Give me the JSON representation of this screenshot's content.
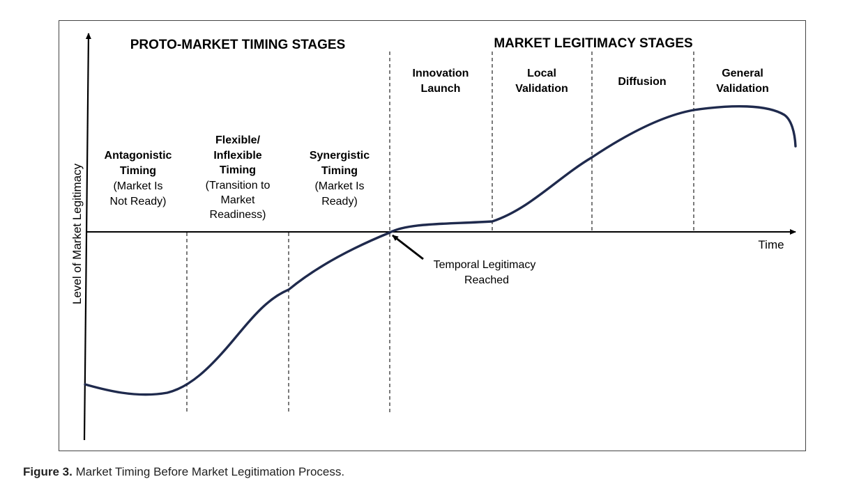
{
  "section_titles": {
    "proto": "PROTO-MARKET TIMING STAGES",
    "legitimacy": "MARKET LEGITIMACY STAGES"
  },
  "stages": {
    "antagonistic": {
      "bold": [
        "Antagonistic",
        "Timing"
      ],
      "normal": [
        "(Market Is",
        "Not Ready)"
      ]
    },
    "flexible": {
      "bold": [
        "Flexible/",
        "Inflexible",
        "Timing"
      ],
      "normal": [
        "(Transition to",
        "Market",
        "Readiness)"
      ]
    },
    "synergistic": {
      "bold": [
        "Synergistic",
        "Timing"
      ],
      "normal": [
        "(Market Is",
        "Ready)"
      ]
    },
    "innovation": {
      "bold": [
        "Innovation",
        "Launch"
      ]
    },
    "local": {
      "bold": [
        "Local",
        "Validation"
      ]
    },
    "diffusion": {
      "bold": [
        "Diffusion"
      ]
    },
    "general": {
      "bold": [
        "General",
        "Validation"
      ]
    }
  },
  "axes": {
    "y_label": "Level of Market Legitimacy",
    "x_label": "Time"
  },
  "annotation": {
    "lines": [
      "Temporal Legitimacy",
      "Reached"
    ]
  },
  "caption": {
    "label": "Figure 3.",
    "text": "Market Timing Before Market Legitimation Process."
  },
  "colors": {
    "curve": "#1f2a4d",
    "axis": "#000000"
  },
  "icons": {
    "annotation_arrow": "arrow-pointer-icon"
  }
}
